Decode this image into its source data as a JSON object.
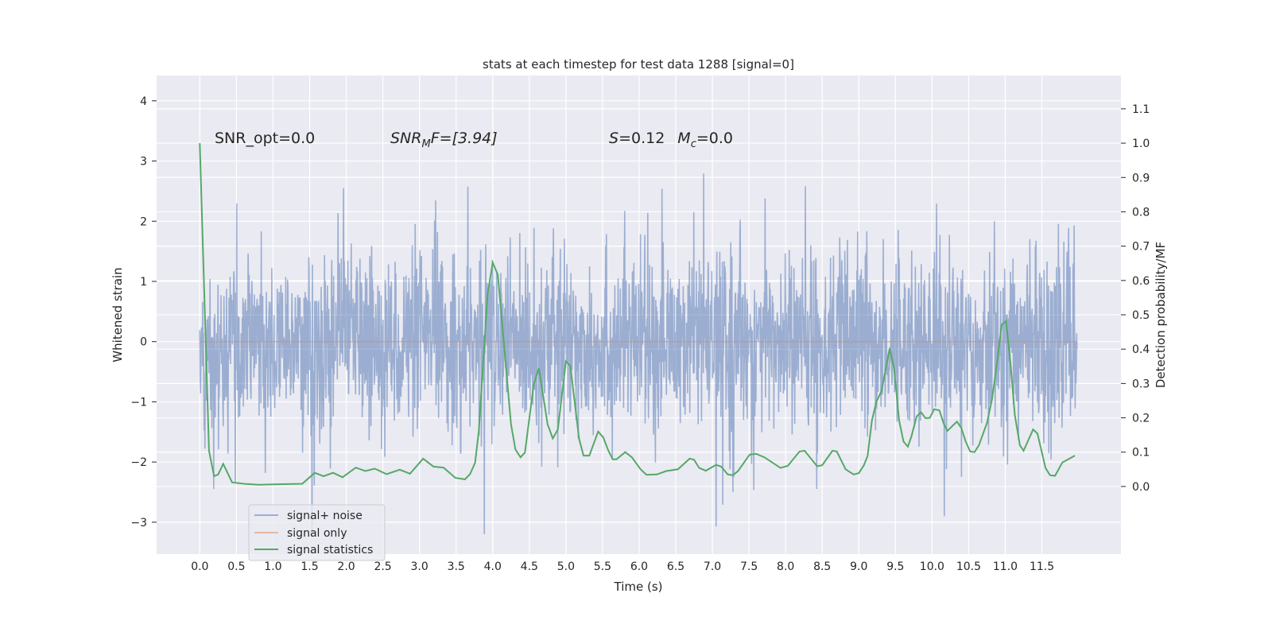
{
  "chart_data": {
    "type": "line",
    "title": "stats at each timestep for test data 1288 [signal=0]",
    "xlabel": "Time (s)",
    "ylabel_left": "Whitened strain",
    "ylabel_right": "Detection probability/MF",
    "xlim": [
      -0.59,
      12.58
    ],
    "ylim_left": [
      -3.53,
      4.42
    ],
    "ylim_right": [
      -0.197,
      1.197
    ],
    "grid": true,
    "x_ticks": [
      "0.0",
      "0.5",
      "1.0",
      "1.5",
      "2.0",
      "2.5",
      "3.0",
      "3.5",
      "4.0",
      "4.5",
      "5.0",
      "5.5",
      "6.0",
      "6.5",
      "7.0",
      "7.5",
      "8.0",
      "8.5",
      "9.0",
      "9.5",
      "10.0",
      "10.5",
      "11.0",
      "11.5"
    ],
    "x_tick_values": [
      0,
      0.5,
      1,
      1.5,
      2,
      2.5,
      3,
      3.5,
      4,
      4.5,
      5,
      5.5,
      6,
      6.5,
      7,
      7.5,
      8,
      8.5,
      9,
      9.5,
      10,
      10.5,
      11,
      11.5
    ],
    "y_ticks_left": [
      "−3",
      "−2",
      "−1",
      "0",
      "1",
      "2",
      "3",
      "4"
    ],
    "y_tick_values_left": [
      -3,
      -2,
      -1,
      0,
      1,
      2,
      3,
      4
    ],
    "y_ticks_right": [
      "0.0",
      "0.1",
      "0.2",
      "0.3",
      "0.4",
      "0.5",
      "0.6",
      "0.7",
      "0.8",
      "0.9",
      "1.0",
      "1.1"
    ],
    "y_tick_values_right": [
      0,
      0.1,
      0.2,
      0.3,
      0.4,
      0.5,
      0.6,
      0.7,
      0.8,
      0.9,
      1.0,
      1.1
    ],
    "annotations": {
      "snr_opt": "SNR_opt=0.0",
      "snr_mf_base": "SNR",
      "snr_mf_sub": "M",
      "snr_mf_rest": "F=[3.94]",
      "s_label": "S",
      "s_value": "=0.12",
      "mc_base": "M",
      "mc_sub": "c",
      "mc_value": "=0.0"
    },
    "legend": {
      "placement": "lower-left",
      "entries": [
        "signal+ noise",
        "signal only",
        "signal statistics"
      ]
    },
    "colors": {
      "noise": "#4c72b0",
      "signal": "#dd8452",
      "stats": "#55a868",
      "bg": "#eaeaf2"
    },
    "series": [
      {
        "name": "signal+ noise",
        "axis": "left",
        "t_range": [
          0,
          11.98
        ],
        "n_samples": 2400,
        "std": 0.72,
        "note": "dense noisy whitened strain"
      },
      {
        "name": "signal only",
        "axis": "left",
        "t": [
          0,
          11.98
        ],
        "values": [
          0,
          0
        ]
      },
      {
        "name": "signal statistics",
        "axis": "right",
        "t": [
          0,
          0.126,
          0.195,
          0.25,
          0.32,
          0.44,
          0.6,
          0.8,
          1.0,
          1.2,
          1.4,
          1.57,
          1.69,
          1.82,
          1.95,
          2.13,
          2.26,
          2.39,
          2.55,
          2.73,
          2.87,
          3.05,
          3.19,
          3.33,
          3.49,
          3.62,
          3.69,
          3.76,
          3.81,
          3.93,
          4.0,
          4.07,
          4.25,
          4.31,
          4.38,
          4.44,
          4.56,
          4.63,
          4.75,
          4.82,
          4.89,
          5.0,
          5.06,
          5.18,
          5.24,
          5.32,
          5.44,
          5.51,
          5.58,
          5.64,
          5.69,
          5.81,
          5.9,
          6.02,
          6.1,
          6.24,
          6.37,
          6.53,
          6.69,
          6.75,
          6.82,
          6.91,
          7.05,
          7.12,
          7.21,
          7.28,
          7.35,
          7.51,
          7.6,
          7.71,
          7.93,
          8.03,
          8.19,
          8.26,
          8.43,
          8.5,
          8.64,
          8.7,
          8.82,
          8.93,
          9.0,
          9.07,
          9.12,
          9.18,
          9.24,
          9.31,
          9.42,
          9.48,
          9.55,
          9.61,
          9.67,
          9.72,
          9.79,
          9.85,
          9.91,
          9.97,
          10.03,
          10.1,
          10.16,
          10.21,
          10.34,
          10.4,
          10.46,
          10.52,
          10.58,
          10.64,
          10.75,
          10.82,
          10.89,
          10.95,
          11.01,
          11.07,
          11.13,
          11.2,
          11.25,
          11.38,
          11.44,
          11.55,
          11.61,
          11.68,
          11.78,
          11.95
        ],
        "values": [
          1.0,
          0.104,
          0.03,
          0.035,
          0.066,
          0.012,
          0.008,
          0.005,
          0.006,
          0.007,
          0.008,
          0.04,
          0.03,
          0.04,
          0.027,
          0.055,
          0.045,
          0.052,
          0.036,
          0.049,
          0.037,
          0.081,
          0.058,
          0.055,
          0.025,
          0.021,
          0.036,
          0.069,
          0.162,
          0.56,
          0.652,
          0.617,
          0.181,
          0.108,
          0.085,
          0.099,
          0.297,
          0.345,
          0.181,
          0.14,
          0.166,
          0.365,
          0.351,
          0.139,
          0.09,
          0.09,
          0.16,
          0.143,
          0.104,
          0.079,
          0.079,
          0.1,
          0.085,
          0.05,
          0.034,
          0.035,
          0.045,
          0.05,
          0.081,
          0.078,
          0.054,
          0.046,
          0.063,
          0.058,
          0.035,
          0.033,
          0.045,
          0.093,
          0.095,
          0.085,
          0.054,
          0.06,
          0.102,
          0.104,
          0.059,
          0.062,
          0.104,
          0.102,
          0.05,
          0.035,
          0.039,
          0.062,
          0.089,
          0.193,
          0.247,
          0.278,
          0.402,
          0.347,
          0.193,
          0.131,
          0.116,
          0.147,
          0.204,
          0.216,
          0.199,
          0.2,
          0.225,
          0.222,
          0.183,
          0.162,
          0.189,
          0.17,
          0.131,
          0.102,
          0.1,
          0.12,
          0.185,
          0.255,
          0.363,
          0.471,
          0.482,
          0.363,
          0.208,
          0.12,
          0.104,
          0.166,
          0.154,
          0.054,
          0.033,
          0.031,
          0.07,
          0.09
        ]
      }
    ]
  }
}
